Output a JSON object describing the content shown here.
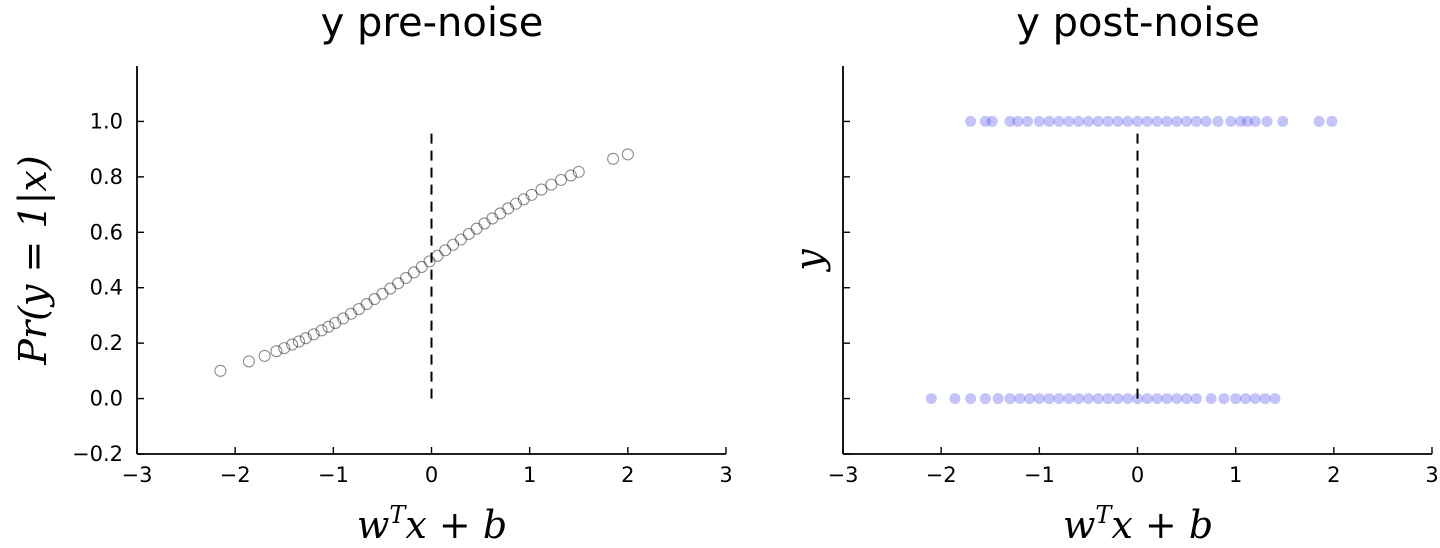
{
  "chart_data": [
    {
      "type": "scatter",
      "title": "y pre-noise",
      "xlabel": "w^T x + b",
      "ylabel": "Pr(y = 1|x)",
      "xlim": [
        -3,
        3
      ],
      "ylim": [
        -0.2,
        1.2
      ],
      "xticks": [
        -3,
        -2,
        -1,
        0,
        1,
        2,
        3
      ],
      "xtick_labels": [
        "−3",
        "−2",
        "−1",
        "0",
        "1",
        "2",
        "3"
      ],
      "yticks": [
        -0.2,
        0.0,
        0.2,
        0.4,
        0.6,
        0.8,
        1.0
      ],
      "ytick_labels": [
        "−0.2",
        "0.0",
        "0.2",
        "0.4",
        "0.6",
        "0.8",
        "1.0"
      ],
      "marker": "open-circle",
      "color": "#000000",
      "grid": false,
      "reference_line": {
        "x": 0,
        "y_from": 0.0,
        "y_to": 0.96,
        "style": "dashed"
      },
      "series": [
        {
          "x": [
            -2.15,
            -1.86,
            -1.7,
            -1.58,
            -1.5,
            -1.42,
            -1.35,
            -1.28,
            -1.2,
            -1.12,
            -1.05,
            -0.98,
            -0.9,
            -0.82,
            -0.74,
            -0.66,
            -0.58,
            -0.5,
            -0.42,
            -0.34,
            -0.26,
            -0.18,
            -0.1,
            -0.02,
            0.06,
            0.14,
            0.22,
            0.3,
            0.38,
            0.46,
            0.54,
            0.62,
            0.7,
            0.78,
            0.86,
            0.94,
            1.02,
            1.12,
            1.22,
            1.32,
            1.42,
            1.5,
            1.85,
            2.0
          ],
          "y": [
            0.1,
            0.134,
            0.154,
            0.171,
            0.182,
            0.195,
            0.206,
            0.218,
            0.232,
            0.246,
            0.259,
            0.273,
            0.289,
            0.306,
            0.323,
            0.341,
            0.359,
            0.378,
            0.397,
            0.416,
            0.435,
            0.455,
            0.475,
            0.495,
            0.515,
            0.535,
            0.555,
            0.574,
            0.594,
            0.613,
            0.632,
            0.65,
            0.668,
            0.686,
            0.703,
            0.719,
            0.735,
            0.754,
            0.772,
            0.789,
            0.805,
            0.818,
            0.865,
            0.881
          ]
        }
      ]
    },
    {
      "type": "scatter",
      "title": "y post-noise",
      "xlabel": "w^T x + b",
      "ylabel": "y",
      "xlim": [
        -3,
        3
      ],
      "ylim": [
        -0.2,
        1.2
      ],
      "xticks": [
        -3,
        -2,
        -1,
        0,
        1,
        2,
        3
      ],
      "xtick_labels": [
        "−3",
        "−2",
        "−1",
        "0",
        "1",
        "2",
        "3"
      ],
      "yticks": [
        -0.2,
        0.0,
        0.2,
        0.4,
        0.6,
        0.8,
        1.0
      ],
      "ytick_labels": [],
      "marker": "filled-circle",
      "color": "#2b2bf0",
      "grid": false,
      "reference_line": {
        "x": 0,
        "y_from": 0.0,
        "y_to": 0.96,
        "style": "dashed"
      },
      "series": [
        {
          "x": [
            -1.7,
            -1.55,
            -1.48,
            -1.3,
            -1.22,
            -1.12,
            -1.0,
            -0.9,
            -0.8,
            -0.7,
            -0.6,
            -0.5,
            -0.4,
            -0.3,
            -0.2,
            -0.1,
            0.0,
            0.1,
            0.2,
            0.3,
            0.4,
            0.5,
            0.6,
            0.7,
            0.82,
            0.95,
            1.05,
            1.12,
            1.2,
            1.32,
            1.48,
            1.85,
            1.98
          ],
          "y": [
            1,
            1,
            1,
            1,
            1,
            1,
            1,
            1,
            1,
            1,
            1,
            1,
            1,
            1,
            1,
            1,
            1,
            1,
            1,
            1,
            1,
            1,
            1,
            1,
            1,
            1,
            1,
            1,
            1,
            1,
            1,
            1,
            1
          ]
        },
        {
          "x": [
            -2.1,
            -1.86,
            -1.7,
            -1.55,
            -1.42,
            -1.3,
            -1.2,
            -1.1,
            -1.0,
            -0.9,
            -0.8,
            -0.7,
            -0.6,
            -0.5,
            -0.4,
            -0.3,
            -0.2,
            -0.1,
            0.0,
            0.1,
            0.2,
            0.3,
            0.4,
            0.5,
            0.6,
            0.75,
            0.88,
            1.0,
            1.1,
            1.2,
            1.3,
            1.4
          ],
          "y": [
            0,
            0,
            0,
            0,
            0,
            0,
            0,
            0,
            0,
            0,
            0,
            0,
            0,
            0,
            0,
            0,
            0,
            0,
            0,
            0,
            0,
            0,
            0,
            0,
            0,
            0,
            0,
            0,
            0,
            0,
            0,
            0
          ]
        }
      ]
    }
  ]
}
